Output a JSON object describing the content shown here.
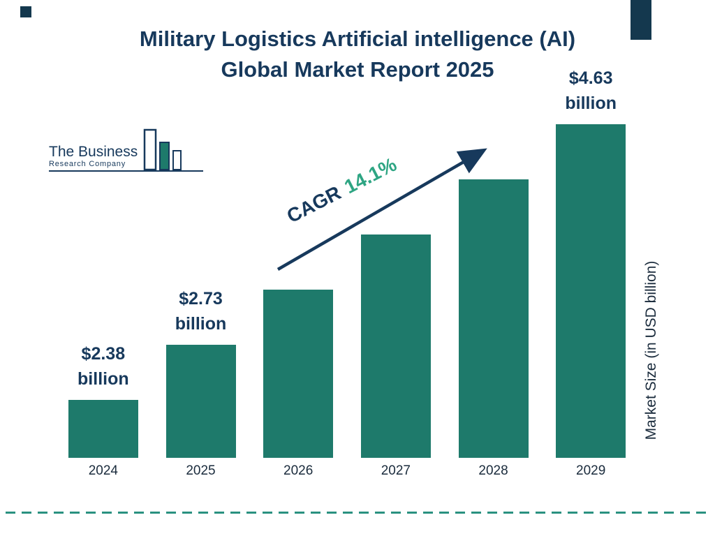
{
  "page": {
    "title_line1": "Military Logistics Artificial intelligence (AI)",
    "title_line2": "Global Market Report 2025"
  },
  "logo": {
    "name_line1": "The Business",
    "name_line2": "Research Company"
  },
  "annotation": {
    "cagr_label": "CAGR",
    "cagr_value": "14.1%"
  },
  "chart_data": {
    "type": "bar",
    "title": "Military Logistics Artificial intelligence (AI) Global Market Report 2025",
    "ylabel": "Market Size (in USD billion)",
    "cagr_percent": "14.1%",
    "categories": [
      "2024",
      "2025",
      "2026",
      "2027",
      "2028",
      "2029"
    ],
    "values": [
      2.38,
      2.73,
      3.12,
      3.56,
      4.06,
      4.63
    ],
    "value_labels": [
      {
        "category": "2024",
        "line1": "$2.38",
        "line2": "billion"
      },
      {
        "category": "2025",
        "line1": "$2.73",
        "line2": "billion"
      },
      {
        "category": "2029",
        "line1": "$4.63",
        "line2": "billion"
      }
    ],
    "legend": "none",
    "grid": "off",
    "bar_color": "#1E7A6B"
  },
  "colors": {
    "navy": "#17395C",
    "bar_teal": "#1E7A6B",
    "cagr_green": "#2EA583",
    "axis_text": "#1A2B3C",
    "dash_teal": "#2A9180",
    "corner_dark": "#14384E",
    "background": "#FFFFFF"
  }
}
